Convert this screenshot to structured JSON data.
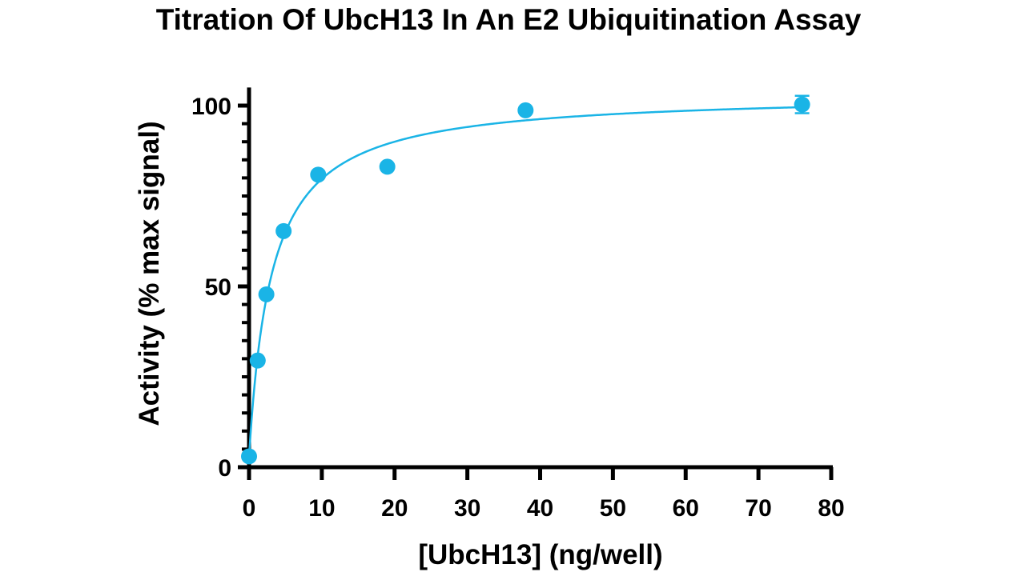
{
  "chart_data": {
    "type": "scatter",
    "title": "Titration Of UbcH13 In An E2 Ubiquitination Assay",
    "xlabel": "[UbcH13] (ng/well)",
    "ylabel": "Activity (% max signal)",
    "xlim": [
      0,
      80
    ],
    "ylim": [
      0,
      105
    ],
    "x_ticks": [
      0,
      10,
      20,
      30,
      40,
      50,
      60,
      70,
      80
    ],
    "y_ticks": [
      0,
      50,
      100
    ],
    "x_tick_labels": [
      "0",
      "10",
      "20",
      "30",
      "40",
      "50",
      "60",
      "70",
      "80"
    ],
    "y_tick_labels": [
      "0",
      "50",
      "100"
    ],
    "y_minor_step": 5,
    "grid": false,
    "legend": "none",
    "color": "#1ab4e6",
    "series": [
      {
        "points": [
          {
            "x": 0,
            "y": 3,
            "err": 0
          },
          {
            "x": 1.19,
            "y": 29.5,
            "err": 0
          },
          {
            "x": 2.38,
            "y": 47.8,
            "err": 0
          },
          {
            "x": 4.75,
            "y": 65.3,
            "err": 0
          },
          {
            "x": 9.5,
            "y": 80.9,
            "err": 0
          },
          {
            "x": 19,
            "y": 83.1,
            "err": 0
          },
          {
            "x": 38,
            "y": 98.7,
            "err": 0
          },
          {
            "x": 76,
            "y": 100.3,
            "err": 2.4
          }
        ],
        "fit": {
          "model": "hyperbolic",
          "vmax": 103.5,
          "km": 3.1,
          "y0": 3,
          "x_range": [
            0,
            76
          ]
        }
      }
    ]
  }
}
